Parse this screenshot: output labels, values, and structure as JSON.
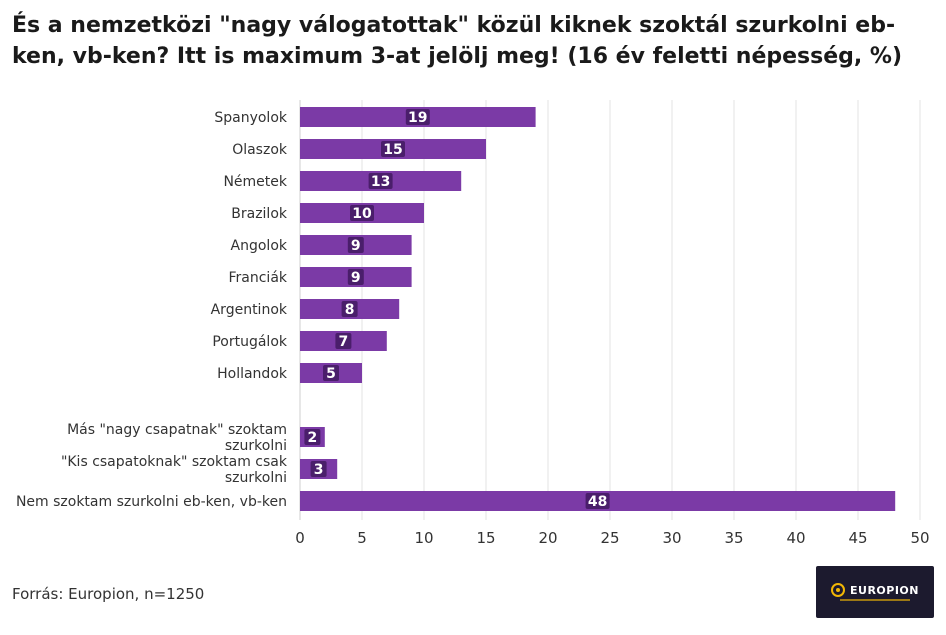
{
  "title": "És a nemzetközi \"nagy válogatottak\" közül kiknek szoktál szurkolni eb-ken, vb-ken? Itt is maximum 3-at jelölj meg! (16 év feletti népesség, %)",
  "footer": {
    "source": "Forrás: Europion, n=1250"
  },
  "logo": {
    "text": "EUROPION"
  },
  "chart_data": {
    "type": "bar",
    "orientation": "horizontal",
    "title": "És a nemzetközi \"nagy válogatottak\" közül kiknek szoktál szurkolni eb-ken, vb-ken? Itt is maximum 3-at jelölj meg! (16 év feletti népesség, %)",
    "categories": [
      [
        "Spanyolok"
      ],
      [
        "Olaszok"
      ],
      [
        "Németek"
      ],
      [
        "Brazilok"
      ],
      [
        "Angolok"
      ],
      [
        "Franciák"
      ],
      [
        "Argentinok"
      ],
      [
        "Portugálok"
      ],
      [
        "Hollandok"
      ],
      [
        "Más \"nagy csapatnak\" szoktam",
        "szurkolni"
      ],
      [
        "\"Kis csapatoknak\" szoktam csak",
        "szurkolni"
      ],
      [
        "Nem szoktam szurkolni eb-ken, vb-ken"
      ]
    ],
    "values": [
      19,
      15,
      13,
      10,
      9,
      9,
      8,
      7,
      5,
      2,
      3,
      48
    ],
    "xlim": [
      0,
      50
    ],
    "xticks": [
      0,
      5,
      10,
      15,
      20,
      25,
      30,
      35,
      40,
      45,
      50
    ],
    "grid": true,
    "bar_color": "#7b3aa6",
    "label_box_color": "#4a1e6b"
  }
}
